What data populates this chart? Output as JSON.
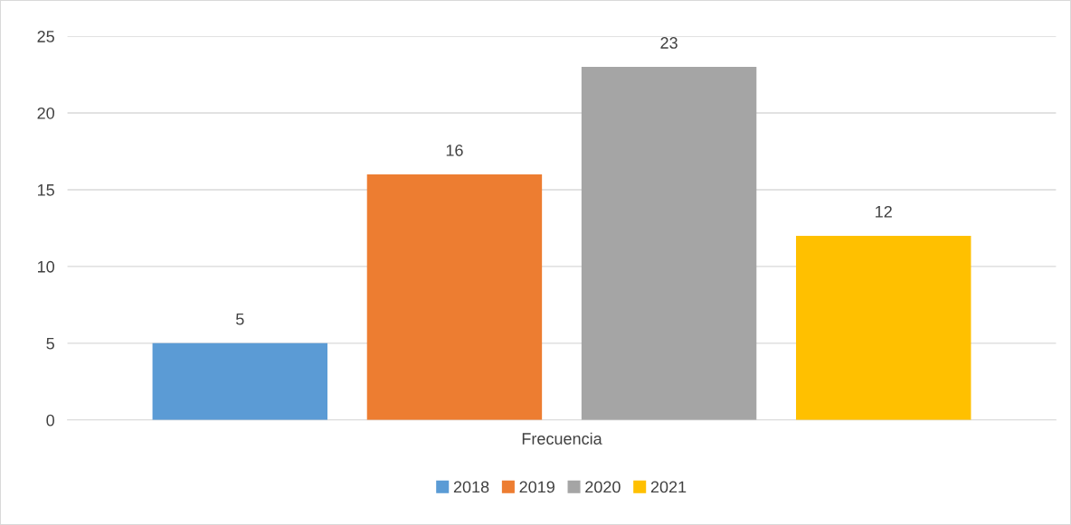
{
  "chart_data": {
    "type": "bar",
    "categories": [
      "Frecuencia"
    ],
    "series": [
      {
        "name": "2018",
        "color": "#5b9bd5",
        "values": [
          5
        ]
      },
      {
        "name": "2019",
        "color": "#ed7d31",
        "values": [
          16
        ]
      },
      {
        "name": "2020",
        "color": "#a5a5a5",
        "values": [
          23
        ]
      },
      {
        "name": "2021",
        "color": "#ffc000",
        "values": [
          12
        ]
      }
    ],
    "ylim": [
      0,
      25
    ],
    "yticks": [
      0,
      5,
      10,
      15,
      20,
      25
    ],
    "grid": "y",
    "legend": "bottom",
    "data_labels": true
  }
}
